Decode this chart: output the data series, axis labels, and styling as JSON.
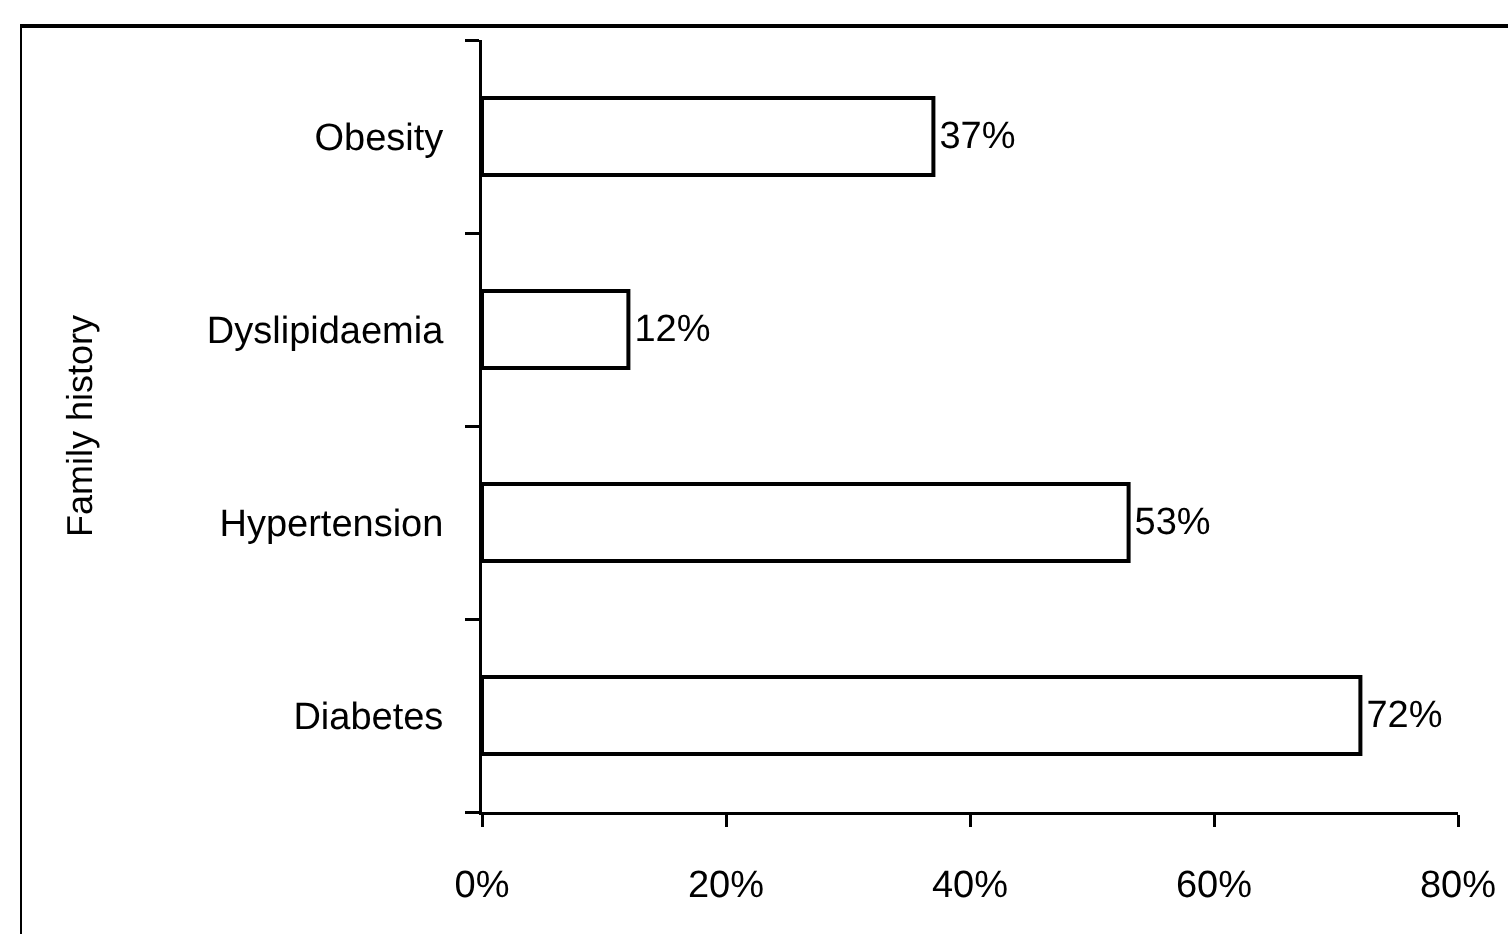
{
  "chart_data": {
    "type": "bar",
    "orientation": "horizontal",
    "ylabel": "Family history",
    "categories": [
      "Obesity",
      "Dyslipidaemia",
      "Hypertension",
      "Diabetes"
    ],
    "values": [
      37,
      12,
      53,
      72
    ],
    "value_labels": [
      "37%",
      "12%",
      "53%",
      "72%"
    ],
    "color": "#ffffff",
    "xlim": [
      0,
      80
    ],
    "xticks": [
      {
        "value": 0,
        "label": "0%"
      },
      {
        "value": 20,
        "label": "20%"
      },
      {
        "value": 40,
        "label": "40%"
      },
      {
        "value": 60,
        "label": "60%"
      },
      {
        "value": 80,
        "label": "80%"
      }
    ]
  }
}
